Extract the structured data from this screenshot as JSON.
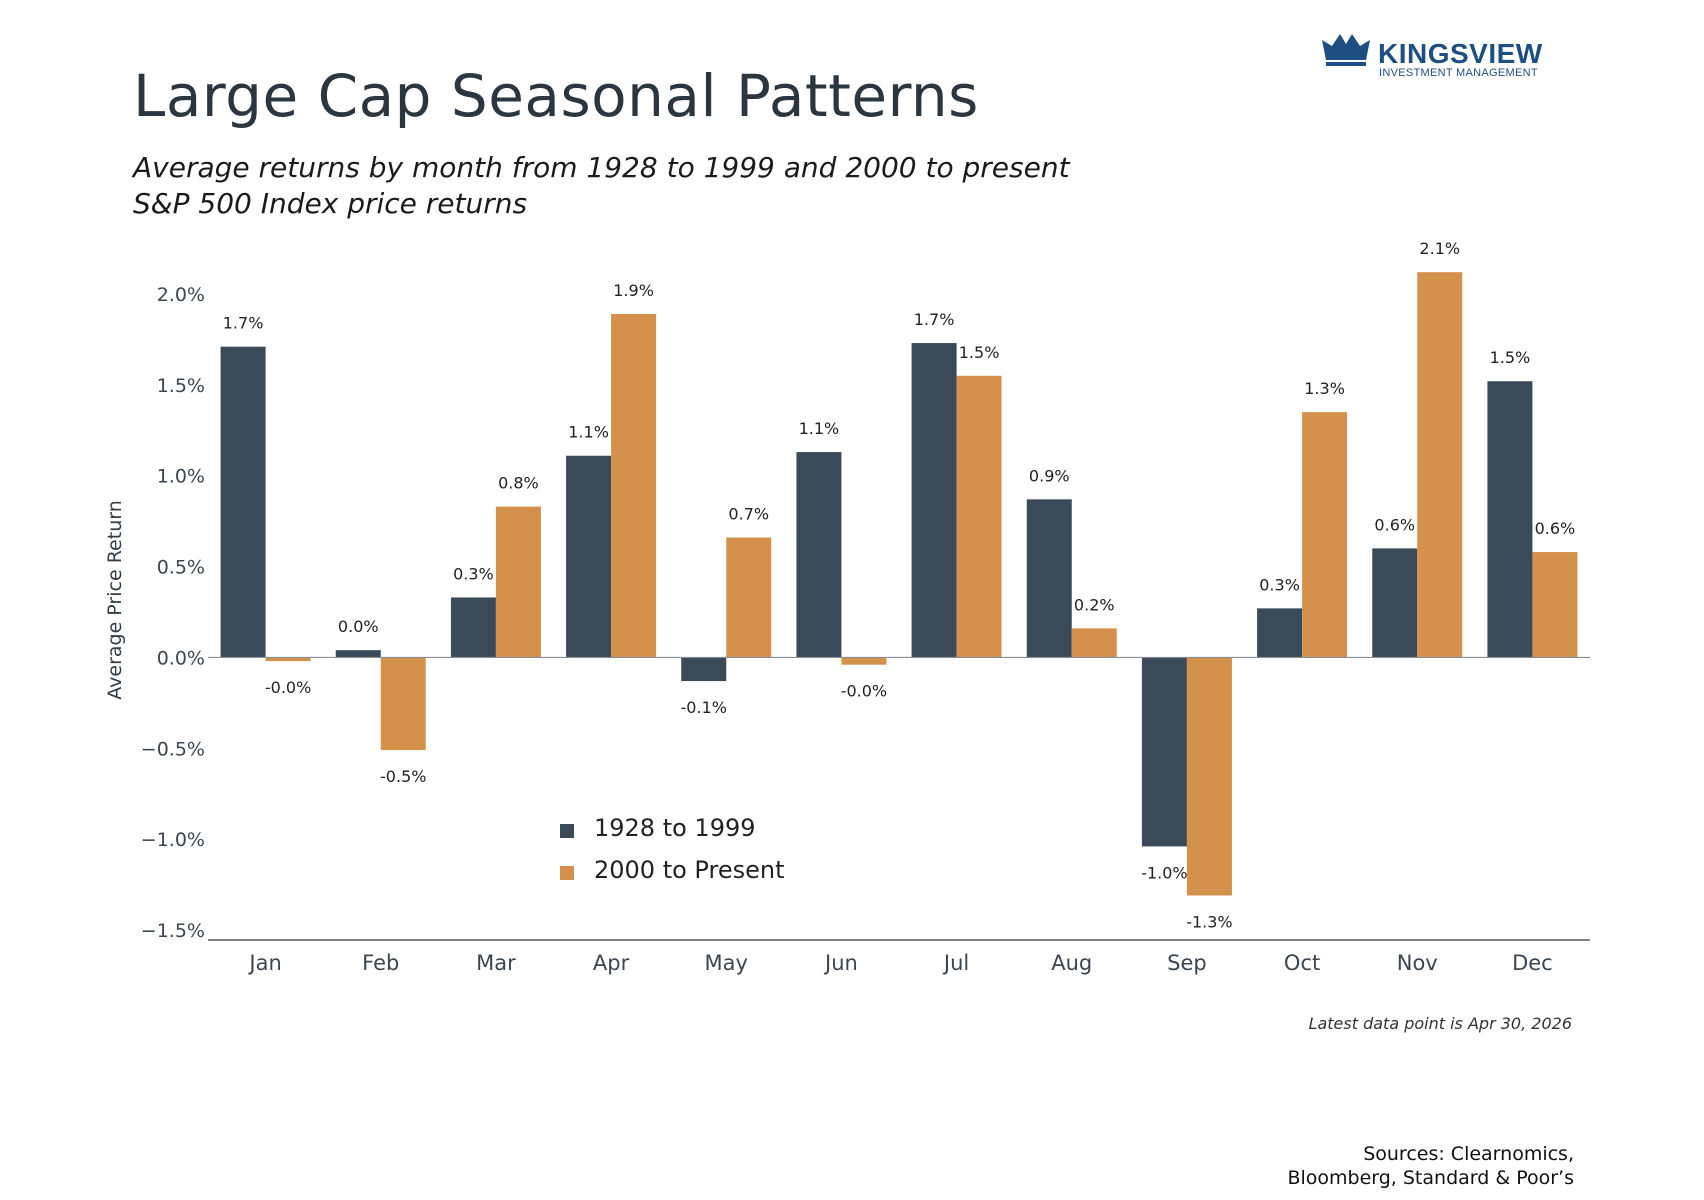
{
  "header": {
    "title": "Large Cap Seasonal Patterns",
    "subtitle_line1": "Average returns by month from 1928 to 1999 and 2000 to present",
    "subtitle_line2": "S&P 500 Index price returns"
  },
  "logo": {
    "name": "KINGSVIEW",
    "tagline": "INVESTMENT MANAGEMENT",
    "color": "#1f4f82"
  },
  "chart_data": {
    "type": "bar",
    "title": "",
    "xlabel": "",
    "ylabel": "Average Price Return",
    "ylim": [
      -1.5,
      2.0
    ],
    "yticks": [
      2.0,
      1.5,
      1.0,
      0.5,
      0.0,
      -0.5,
      -1.0,
      -1.5
    ],
    "ytick_labels": [
      "2.0%",
      "1.5%",
      "1.0%",
      "0.5%",
      "0.0%",
      "−0.5%",
      "−1.0%",
      "−1.5%"
    ],
    "categories": [
      "Jan",
      "Feb",
      "Mar",
      "Apr",
      "May",
      "Jun",
      "Jul",
      "Aug",
      "Sep",
      "Oct",
      "Nov",
      "Dec"
    ],
    "series": [
      {
        "name": "1928 to 1999",
        "color": "#3a4a58",
        "values": [
          1.71,
          0.04,
          0.33,
          1.11,
          -0.13,
          1.13,
          1.73,
          0.87,
          -1.04,
          0.27,
          0.6,
          1.52
        ],
        "labels": [
          "1.7%",
          "0.0%",
          "0.3%",
          "1.1%",
          "-0.1%",
          "1.1%",
          "1.7%",
          "0.9%",
          "-1.0%",
          "0.3%",
          "0.6%",
          "1.5%"
        ]
      },
      {
        "name": "2000 to Present",
        "color": "#d4914c",
        "values": [
          -0.02,
          -0.51,
          0.83,
          1.89,
          0.66,
          -0.04,
          1.55,
          0.16,
          -1.31,
          1.35,
          2.12,
          0.58
        ],
        "labels": [
          "-0.0%",
          "-0.5%",
          "0.8%",
          "1.9%",
          "0.7%",
          "-0.0%",
          "1.5%",
          "0.2%",
          "-1.3%",
          "1.3%",
          "2.1%",
          "0.6%"
        ]
      }
    ],
    "grid": false,
    "legend_position": "bottom-center"
  },
  "footer": {
    "note": "Latest data point is Apr 30, 2026",
    "sources_line1": "Sources: Clearnomics,",
    "sources_line2": "Bloomberg, Standard & Poor’s"
  }
}
